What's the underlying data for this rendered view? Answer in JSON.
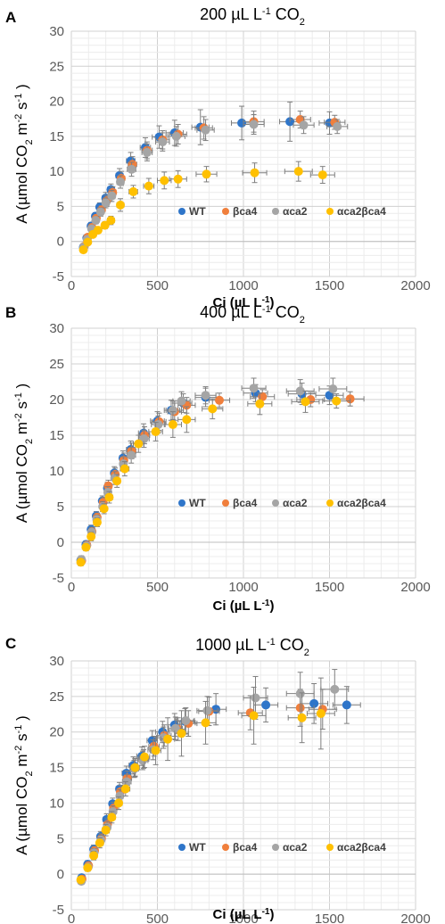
{
  "chart_data": [
    {
      "type": "scatter",
      "panel_label": "A",
      "title": "200 µL L",
      "title_sup": "-1",
      "title_tail": " CO",
      "title_sub": "2",
      "xlabel": "Ci (µL L",
      "xlabel_sup": "-1",
      "xlabel_tail": ")",
      "ylabel_parts": [
        "A (µmol CO",
        "2",
        " m",
        "-2",
        " s",
        "-1",
        " )"
      ],
      "xlim": [
        0,
        2000
      ],
      "ylim": [
        -5,
        30
      ],
      "xticks": [
        "0",
        "500",
        "1000",
        "1500",
        "2000"
      ],
      "yticks": [
        "-5",
        "0",
        "5",
        "10",
        "15",
        "20",
        "25",
        "30"
      ],
      "legend_position": "lower-right",
      "series": [
        {
          "name": "WT",
          "color": "#2E75C9",
          "x": [
            70,
            90,
            115,
            140,
            165,
            200,
            230,
            280,
            345,
            430,
            510,
            600,
            750,
            990,
            1270,
            1500
          ],
          "y": [
            -0.8,
            0.5,
            2.2,
            3.6,
            4.9,
            6.2,
            7.4,
            9.4,
            11.5,
            13.4,
            14.9,
            15.5,
            16.3,
            16.9,
            17.1,
            16.9
          ],
          "yerr": [
            0.4,
            0.4,
            0.5,
            0.5,
            0.6,
            0.8,
            0.8,
            1.0,
            1.2,
            1.4,
            1.6,
            1.8,
            2.5,
            2.4,
            2.8,
            1.6
          ],
          "xerr": [
            10,
            10,
            10,
            15,
            15,
            20,
            20,
            20,
            25,
            30,
            40,
            50,
            50,
            60,
            60,
            60
          ]
        },
        {
          "name": "βca4",
          "color": "#F07F3C",
          "x": [
            75,
            95,
            120,
            145,
            175,
            205,
            240,
            290,
            355,
            440,
            530,
            620,
            770,
            1060,
            1330,
            1530
          ],
          "y": [
            -0.7,
            0.6,
            2.0,
            3.3,
            4.5,
            5.8,
            7.0,
            9.0,
            11.0,
            13.0,
            14.5,
            15.3,
            16.2,
            17.1,
            17.4,
            17.0
          ],
          "yerr": [
            0.4,
            0.4,
            0.5,
            0.5,
            0.6,
            0.8,
            0.8,
            1.0,
            1.1,
            1.2,
            1.3,
            1.4,
            1.6,
            1.5,
            1.2,
            1.0
          ],
          "xerr": [
            10,
            10,
            10,
            15,
            15,
            20,
            20,
            20,
            25,
            30,
            40,
            50,
            50,
            60,
            60,
            60
          ]
        },
        {
          "name": "αca2",
          "color": "#A5A5A5",
          "x": [
            72,
            92,
            118,
            142,
            170,
            200,
            235,
            285,
            350,
            440,
            530,
            610,
            780,
            1060,
            1350,
            1545
          ],
          "y": [
            -0.8,
            0.3,
            1.8,
            3.0,
            4.2,
            5.5,
            6.5,
            8.5,
            10.3,
            12.7,
            14.2,
            15.0,
            15.9,
            16.7,
            16.6,
            16.4
          ],
          "yerr": [
            0.4,
            0.4,
            0.5,
            0.5,
            0.6,
            0.7,
            0.8,
            0.9,
            1.0,
            1.2,
            1.3,
            1.4,
            1.5,
            1.4,
            1.2,
            1.0
          ],
          "xerr": [
            10,
            10,
            10,
            15,
            15,
            20,
            20,
            20,
            25,
            30,
            40,
            50,
            50,
            60,
            60,
            60
          ]
        },
        {
          "name": "αca2βca4",
          "color": "#FFC000",
          "x": [
            70,
            95,
            125,
            155,
            195,
            230,
            285,
            360,
            450,
            540,
            620,
            785,
            1065,
            1320,
            1460
          ],
          "y": [
            -1.2,
            -0.1,
            1.0,
            1.6,
            2.3,
            3.0,
            5.2,
            7.1,
            7.9,
            8.7,
            8.9,
            9.6,
            9.8,
            10.0,
            9.5
          ],
          "yerr": [
            0.3,
            0.3,
            0.4,
            0.4,
            0.5,
            0.6,
            0.9,
            0.9,
            1.1,
            1.2,
            1.2,
            1.1,
            1.4,
            1.4,
            1.2
          ],
          "xerr": [
            10,
            10,
            10,
            15,
            15,
            20,
            20,
            25,
            30,
            40,
            50,
            60,
            70,
            80,
            70
          ]
        }
      ]
    },
    {
      "type": "scatter",
      "panel_label": "B",
      "title": "400 µL L",
      "title_sup": "-1",
      "title_tail": " CO",
      "title_sub": "2",
      "xlabel": "Ci (µL L",
      "xlabel_sup": "-1",
      "xlabel_tail": ")",
      "ylabel_parts": [
        "A (µmol CO",
        "2",
        " m",
        "-2",
        " s",
        "-1",
        " )"
      ],
      "xlim": [
        0,
        2000
      ],
      "ylim": [
        -5,
        30
      ],
      "xticks": [
        "0",
        "500",
        "1000",
        "1500",
        "2000"
      ],
      "yticks": [
        "-5",
        "0",
        "5",
        "10",
        "15",
        "20",
        "25",
        "30"
      ],
      "legend_position": "lower-right",
      "series": [
        {
          "name": "WT",
          "color": "#2E75C9",
          "x": [
            55,
            85,
            115,
            145,
            180,
            210,
            250,
            300,
            345,
            420,
            500,
            580,
            650,
            780,
            1070,
            1340,
            1500
          ],
          "y": [
            -2.5,
            -0.3,
            1.8,
            3.7,
            5.8,
            7.6,
            9.7,
            11.8,
            13.0,
            15.3,
            17.0,
            18.5,
            19.5,
            20.3,
            20.9,
            20.8,
            20.6
          ],
          "yerr": [
            0.5,
            0.5,
            0.6,
            0.6,
            0.7,
            0.8,
            0.9,
            1.0,
            1.2,
            1.3,
            1.3,
            1.4,
            1.3,
            1.3,
            1.2,
            1.5,
            1.3
          ],
          "xerr": [
            10,
            10,
            10,
            15,
            15,
            20,
            20,
            20,
            25,
            30,
            40,
            40,
            50,
            60,
            70,
            80,
            80
          ]
        },
        {
          "name": "βca4",
          "color": "#F07F3C",
          "x": [
            60,
            90,
            120,
            150,
            185,
            215,
            255,
            305,
            350,
            425,
            510,
            600,
            670,
            860,
            1110,
            1390,
            1620
          ],
          "y": [
            -2.6,
            -0.4,
            1.5,
            3.5,
            5.6,
            7.9,
            9.5,
            11.5,
            12.8,
            15.0,
            16.9,
            18.3,
            19.2,
            19.9,
            20.4,
            20.0,
            20.1
          ],
          "yerr": [
            0.5,
            0.5,
            0.6,
            0.6,
            0.7,
            0.8,
            0.9,
            1.0,
            1.1,
            1.2,
            1.2,
            1.2,
            1.1,
            1.0,
            1.0,
            1.0,
            1.0
          ],
          "xerr": [
            10,
            10,
            10,
            15,
            15,
            20,
            20,
            20,
            25,
            30,
            40,
            40,
            50,
            60,
            70,
            80,
            80
          ]
        },
        {
          "name": "αca2",
          "color": "#A5A5A5",
          "x": [
            58,
            88,
            118,
            148,
            182,
            212,
            252,
            302,
            348,
            422,
            505,
            590,
            640,
            780,
            1060,
            1330,
            1520
          ],
          "y": [
            -2.4,
            -0.5,
            1.4,
            3.2,
            5.0,
            7.0,
            9.0,
            11.0,
            12.2,
            14.5,
            16.5,
            18.5,
            19.8,
            20.6,
            21.6,
            21.2,
            21.5
          ],
          "yerr": [
            0.5,
            0.5,
            0.6,
            0.6,
            0.7,
            0.8,
            0.9,
            1.0,
            1.1,
            1.2,
            1.2,
            1.3,
            1.3,
            1.2,
            1.4,
            1.6,
            1.5
          ],
          "xerr": [
            10,
            10,
            10,
            15,
            15,
            20,
            20,
            20,
            25,
            30,
            40,
            40,
            50,
            60,
            70,
            80,
            80
          ]
        },
        {
          "name": "αca2βca4",
          "color": "#FFC000",
          "x": [
            55,
            85,
            115,
            150,
            190,
            220,
            265,
            310,
            390,
            490,
            590,
            670,
            820,
            1095,
            1360,
            1540
          ],
          "y": [
            -2.8,
            -0.7,
            0.8,
            2.8,
            4.7,
            6.3,
            8.6,
            10.3,
            13.8,
            15.5,
            16.5,
            17.2,
            18.7,
            19.4,
            19.7,
            19.8
          ],
          "yerr": [
            0.5,
            0.5,
            0.6,
            0.6,
            0.7,
            0.8,
            0.9,
            1.0,
            1.2,
            1.3,
            1.8,
            1.8,
            1.4,
            1.5,
            1.5,
            1.0
          ],
          "xerr": [
            10,
            10,
            10,
            15,
            15,
            20,
            20,
            25,
            30,
            40,
            50,
            50,
            60,
            70,
            80,
            80
          ]
        }
      ]
    },
    {
      "type": "scatter",
      "panel_label": "C",
      "title": "1000 µL L",
      "title_sup": "-1",
      "title_tail": " CO",
      "title_sub": "2",
      "xlabel": "Ci (µL L",
      "xlabel_sup": "-1",
      "xlabel_tail": ")",
      "ylabel_parts": [
        "A (µmol CO",
        "2",
        " m",
        "-2",
        " s",
        "-1",
        " )"
      ],
      "xlim": [
        0,
        2000
      ],
      "ylim": [
        -5,
        30
      ],
      "xticks": [
        "0",
        "500",
        "1000",
        "1500",
        "2000"
      ],
      "yticks": [
        "-5",
        "0",
        "5",
        "10",
        "15",
        "20",
        "25",
        "30"
      ],
      "legend_position": "lower-right",
      "series": [
        {
          "name": "WT",
          "color": "#2E75C9",
          "x": [
            60,
            95,
            130,
            170,
            205,
            240,
            280,
            320,
            360,
            410,
            470,
            530,
            600,
            660,
            840,
            1130,
            1410,
            1600
          ],
          "y": [
            -0.5,
            1.4,
            3.5,
            5.3,
            7.7,
            9.9,
            12.0,
            14.2,
            15.3,
            16.6,
            18.8,
            20.0,
            21.0,
            21.5,
            23.2,
            23.8,
            24.0,
            23.8
          ],
          "yerr": [
            0.4,
            0.5,
            0.6,
            0.7,
            0.8,
            0.8,
            0.9,
            1.0,
            1.2,
            1.3,
            1.4,
            1.5,
            1.6,
            1.8,
            2.2,
            2.4,
            2.8,
            2.6
          ],
          "xerr": [
            10,
            10,
            15,
            15,
            20,
            20,
            20,
            25,
            25,
            30,
            30,
            40,
            40,
            50,
            60,
            70,
            80,
            80
          ]
        },
        {
          "name": "βca4",
          "color": "#F07F3C",
          "x": [
            62,
            100,
            135,
            175,
            210,
            245,
            285,
            325,
            370,
            420,
            480,
            540,
            620,
            680,
            800,
            1040,
            1330,
            1460
          ],
          "y": [
            -0.7,
            1.2,
            3.3,
            5.0,
            7.0,
            9.3,
            11.6,
            13.5,
            15.0,
            16.2,
            18.0,
            19.5,
            20.4,
            21.2,
            22.9,
            22.7,
            23.4,
            23.2
          ],
          "yerr": [
            0.4,
            0.5,
            0.6,
            0.7,
            0.8,
            0.8,
            0.9,
            1.0,
            1.2,
            1.3,
            1.4,
            1.5,
            1.6,
            1.8,
            2.0,
            2.4,
            2.6,
            2.8
          ],
          "xerr": [
            10,
            10,
            15,
            15,
            20,
            20,
            20,
            25,
            25,
            30,
            30,
            40,
            40,
            50,
            60,
            70,
            80,
            80
          ]
        },
        {
          "name": "αca2",
          "color": "#A5A5A5",
          "x": [
            58,
            98,
            132,
            172,
            208,
            242,
            282,
            322,
            365,
            415,
            475,
            535,
            605,
            665,
            790,
            1070,
            1330,
            1530
          ],
          "y": [
            -1.0,
            1.0,
            3.0,
            4.8,
            6.6,
            8.8,
            11.0,
            13.0,
            14.8,
            16.0,
            17.5,
            19.2,
            20.5,
            21.6,
            23.0,
            24.8,
            25.4,
            26.0
          ],
          "yerr": [
            0.4,
            0.5,
            0.6,
            0.7,
            0.8,
            0.8,
            0.9,
            1.0,
            1.2,
            1.3,
            1.4,
            1.5,
            1.6,
            1.8,
            2.0,
            3.0,
            3.0,
            2.8
          ],
          "xerr": [
            10,
            10,
            15,
            15,
            20,
            20,
            20,
            25,
            25,
            30,
            30,
            40,
            40,
            50,
            60,
            70,
            80,
            80
          ]
        },
        {
          "name": "αca2βca4",
          "color": "#FFC000",
          "x": [
            55,
            95,
            130,
            165,
            200,
            235,
            275,
            315,
            370,
            425,
            490,
            560,
            640,
            780,
            1060,
            1340,
            1450
          ],
          "y": [
            -0.8,
            0.9,
            2.6,
            4.4,
            6.2,
            8.0,
            10.0,
            12.0,
            15.0,
            16.5,
            17.4,
            19.0,
            19.8,
            21.3,
            22.3,
            22.0,
            22.6
          ],
          "yerr": [
            0.4,
            0.5,
            0.6,
            0.7,
            0.8,
            0.8,
            0.9,
            1.0,
            1.3,
            1.5,
            2.0,
            3.0,
            3.2,
            3.0,
            4.0,
            3.5,
            5.0
          ],
          "xerr": [
            10,
            10,
            15,
            15,
            20,
            20,
            20,
            25,
            25,
            30,
            30,
            40,
            40,
            60,
            70,
            80,
            80
          ]
        }
      ]
    }
  ]
}
